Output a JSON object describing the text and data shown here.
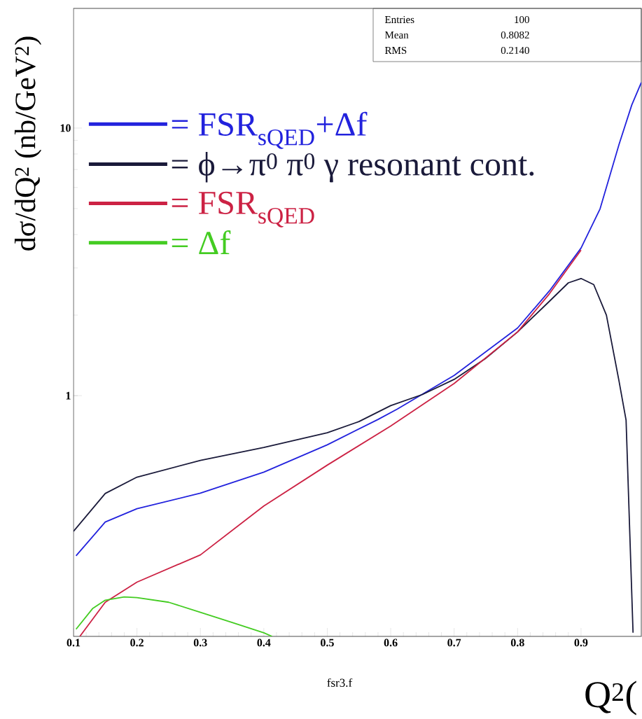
{
  "chart_data": {
    "type": "line",
    "xlabel": "fsr3.f",
    "ylabel": "dσ/dQ$^{2}$ (nb/GeV$^{2}$)",
    "log": "y",
    "xlim": [
      0.1,
      0.995
    ],
    "ylim": [
      0.126,
      28
    ],
    "xticks": [
      0.1,
      0.2,
      0.3,
      0.4,
      0.5,
      0.6,
      0.7,
      0.8,
      0.9
    ],
    "yticks": [
      1,
      10
    ],
    "legend": "top left",
    "marker": "none",
    "line_style": "solid",
    "annotations": [
      "Entries",
      "100",
      "Mean",
      "0.8082",
      "RMS",
      "0.2140",
      "Q$^{2}$("
    ],
    "series": [
      {
        "name": "= FSR$_{sQED}$+Δf",
        "color": "#2222dd",
        "x": [
          0.104,
          0.15,
          0.2,
          0.3,
          0.4,
          0.5,
          0.58,
          0.61,
          0.7,
          0.8,
          0.85,
          0.9,
          0.93,
          0.96,
          0.98,
          0.995
        ],
        "values": [
          0.252,
          0.337,
          0.378,
          0.432,
          0.518,
          0.655,
          0.815,
          0.89,
          1.19,
          1.79,
          2.46,
          3.56,
          4.99,
          8.7,
          12.2,
          14.8
        ]
      },
      {
        "name": "= ϕ→π$^{0}$ π$^{0}$ γ resonant cont.",
        "color": "#1a1a3a",
        "x": [
          0.1,
          0.15,
          0.2,
          0.3,
          0.4,
          0.5,
          0.55,
          0.6,
          0.65,
          0.7,
          0.75,
          0.8,
          0.85,
          0.88,
          0.9,
          0.92,
          0.94,
          0.96,
          0.971,
          0.982
        ],
        "values": [
          0.311,
          0.431,
          0.496,
          0.573,
          0.64,
          0.727,
          0.8,
          0.918,
          1.01,
          1.15,
          1.38,
          1.73,
          2.25,
          2.64,
          2.74,
          2.6,
          2.0,
          1.13,
          0.81,
          0.13
        ]
      },
      {
        "name": "= FSR$_{sQED}$",
        "color": "#cc2244",
        "x": [
          0.11,
          0.15,
          0.2,
          0.3,
          0.4,
          0.5,
          0.6,
          0.7,
          0.8,
          0.85,
          0.9
        ],
        "values": [
          0.126,
          0.169,
          0.201,
          0.254,
          0.387,
          0.55,
          0.77,
          1.11,
          1.73,
          2.4,
          3.5
        ]
      },
      {
        "name": "= Δf",
        "color": "#44cc22",
        "x": [
          0.104,
          0.13,
          0.15,
          0.18,
          0.2,
          0.25,
          0.3,
          0.35,
          0.4,
          0.413
        ],
        "values": [
          0.134,
          0.16,
          0.172,
          0.177,
          0.176,
          0.169,
          0.155,
          0.142,
          0.13,
          0.126
        ]
      }
    ]
  }
}
